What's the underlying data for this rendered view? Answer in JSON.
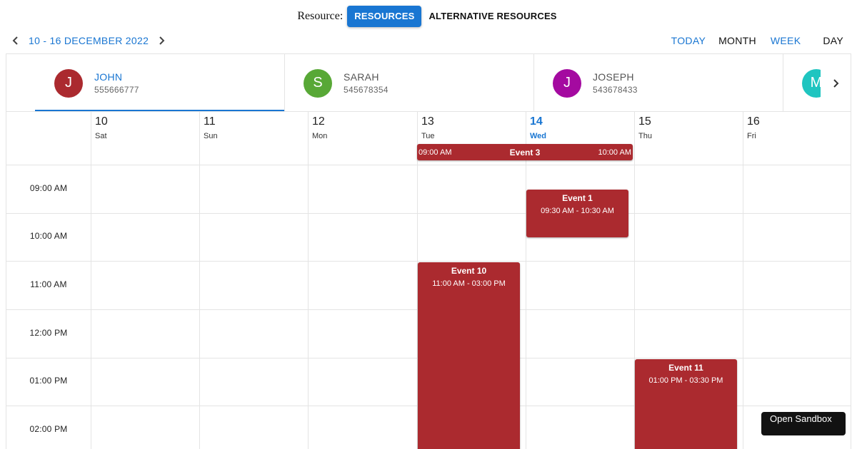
{
  "resource_switch": {
    "label": "Resource:",
    "options": [
      "RESOURCES",
      "ALTERNATIVE RESOURCES"
    ],
    "selected": "RESOURCES"
  },
  "toolbar": {
    "date_range": "10 - 16 DECEMBER 2022",
    "prev_icon": "chevron-left-icon",
    "next_icon": "chevron-right-icon",
    "today_label": "TODAY",
    "month_label": "MONTH",
    "week_label": "WEEK",
    "day_label": "DAY",
    "active_view": "WEEK"
  },
  "resources": [
    {
      "initial": "J",
      "name": "JOHN",
      "phone": "555666777",
      "color": "#ab2a2f",
      "selected": true
    },
    {
      "initial": "S",
      "name": "SARAH",
      "phone": "545678354",
      "color": "#58a836",
      "selected": false
    },
    {
      "initial": "J",
      "name": "JOSEPH",
      "phone": "543678433",
      "color": "#a40aa0",
      "selected": false
    },
    {
      "initial": "M",
      "name": "",
      "phone": "",
      "color": "#1fc5c0",
      "selected": false
    }
  ],
  "days": [
    {
      "num": "10",
      "name": "Sat"
    },
    {
      "num": "11",
      "name": "Sun"
    },
    {
      "num": "12",
      "name": "Mon"
    },
    {
      "num": "13",
      "name": "Tue"
    },
    {
      "num": "14",
      "name": "Wed",
      "today": true
    },
    {
      "num": "15",
      "name": "Thu"
    },
    {
      "num": "16",
      "name": "Fri"
    }
  ],
  "times": [
    "09:00 AM",
    "10:00 AM",
    "11:00 AM",
    "12:00 PM",
    "01:00 PM",
    "02:00 PM"
  ],
  "all_day_event": {
    "title": "Event 3",
    "start": "09:00 AM",
    "end": "10:00 AM"
  },
  "events": [
    {
      "title": "Event 1",
      "time": "09:30 AM - 10:30 AM"
    },
    {
      "title": "Event 10",
      "time": "11:00 AM - 03:00 PM"
    },
    {
      "title": "Event 11",
      "time": "01:00 PM - 03:30 PM"
    }
  ],
  "colors": {
    "accent": "#1976d2",
    "event": "#ab2a2f"
  },
  "sandbox_label": "Open Sandbox"
}
